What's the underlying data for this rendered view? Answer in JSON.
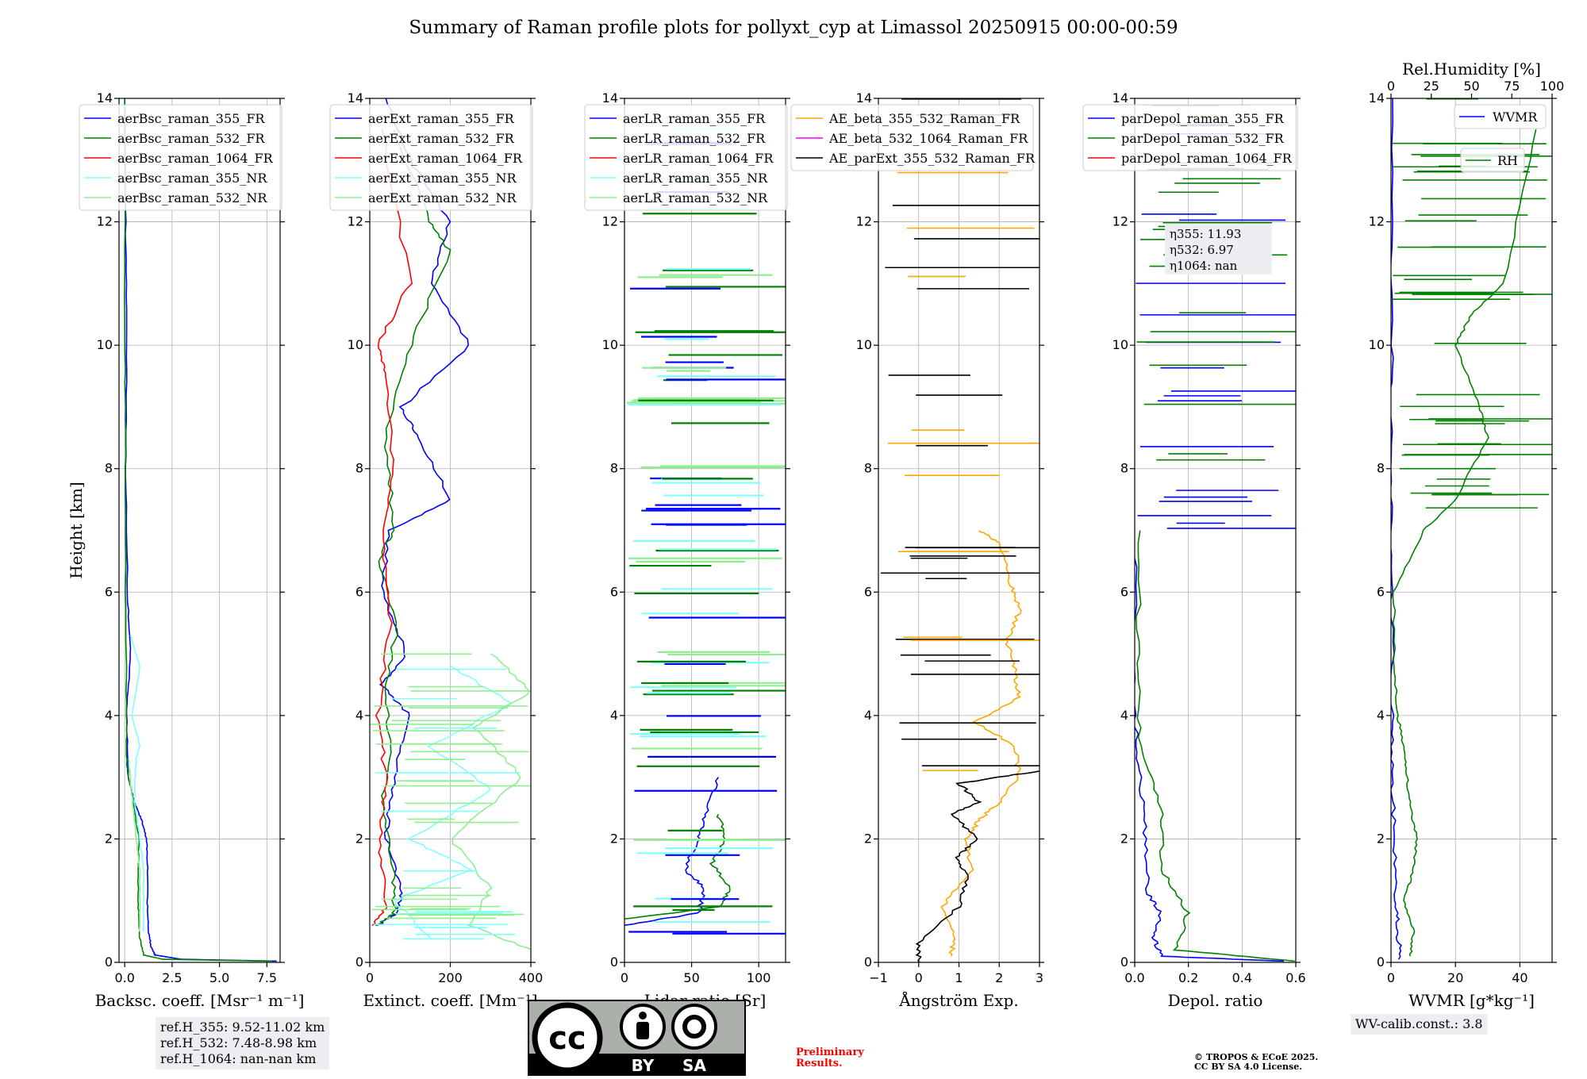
{
  "title": "Summary of Raman profile plots for pollyxt_cyp at Limassol 20250915 00:00-00:59",
  "colors": {
    "blue": "#0000ff",
    "green": "#008000",
    "red": "#ff0000",
    "cyan": "#80ffff",
    "lightgreen": "#90ee90",
    "orange": "#ffa500",
    "magenta": "#ff00ff",
    "black": "#000000"
  },
  "ref_box": {
    "line1": "ref.H_355: 9.52-11.02 km",
    "line2": "ref.H_532: 7.48-8.98 km",
    "line3": "ref.H_1064: nan-nan km"
  },
  "wv_calib": "WV-calib.const.: 3.8",
  "preliminary": {
    "line1": "Preliminary",
    "line2": "Results."
  },
  "copyright": {
    "line1": "© TROPOS & ECoE 2025.",
    "line2": "CC BY SA 4.0 License."
  },
  "license_badge": {
    "cc": "cc",
    "by": "BY",
    "sa": "SA"
  },
  "chart_data": [
    {
      "id": "backscatter",
      "type": "line",
      "xlabel": "Backsc. coeff. [Msr⁻¹ m⁻¹]",
      "ylabel": "Height [km]",
      "xlim": [
        -0.3,
        8.2
      ],
      "ylim": [
        0,
        14
      ],
      "xticks": [
        0,
        2.5,
        5,
        7.5
      ],
      "xticklabels": [
        "0.0",
        "2.5",
        "5.0",
        "7.5"
      ],
      "yticks": [
        0,
        2,
        4,
        6,
        8,
        10,
        12,
        14
      ],
      "legend": [
        "aerBsc_raman_355_FR",
        "aerBsc_raman_532_FR",
        "aerBsc_raman_1064_FR",
        "aerBsc_raman_355_NR",
        "aerBsc_raman_532_NR"
      ],
      "series": [
        {
          "name": "aerBsc_raman_355_FR",
          "color": "blue",
          "points": [
            [
              8.0,
              0.02
            ],
            [
              3.0,
              0.05
            ],
            [
              1.6,
              0.12
            ],
            [
              1.4,
              0.25
            ],
            [
              1.25,
              0.5
            ],
            [
              1.2,
              1.0
            ],
            [
              1.2,
              1.6
            ],
            [
              1.15,
              2.0
            ],
            [
              0.9,
              2.3
            ],
            [
              0.5,
              2.6
            ],
            [
              0.2,
              3.0
            ],
            [
              0.1,
              4.0
            ],
            [
              0.3,
              5.0
            ],
            [
              0.15,
              6.0
            ],
            [
              0.05,
              8.0
            ],
            [
              0.1,
              10.0
            ],
            [
              0.05,
              12.0
            ],
            [
              0.0,
              14.0
            ]
          ]
        },
        {
          "name": "aerBsc_raman_532_FR",
          "color": "green",
          "points": [
            [
              7.8,
              0.02
            ],
            [
              2.0,
              0.05
            ],
            [
              1.0,
              0.12
            ],
            [
              0.8,
              0.4
            ],
            [
              0.7,
              1.0
            ],
            [
              0.75,
              2.0
            ],
            [
              0.45,
              2.6
            ],
            [
              0.1,
              3.2
            ],
            [
              0.1,
              4.0
            ],
            [
              0.05,
              6.0
            ],
            [
              0.05,
              8.0
            ],
            [
              0.02,
              10.0
            ],
            [
              0.0,
              14.0
            ]
          ]
        },
        {
          "name": "aerBsc_raman_355_NR",
          "color": "cyan",
          "points": [
            [
              1.0,
              0.5
            ],
            [
              1.0,
              1.5
            ],
            [
              0.8,
              2.0
            ],
            [
              0.5,
              2.6
            ],
            [
              0.6,
              3.3
            ],
            [
              0.8,
              3.5
            ],
            [
              0.4,
              4.0
            ],
            [
              0.8,
              4.8
            ],
            [
              0.3,
              5.3
            ]
          ]
        },
        {
          "name": "aerBsc_raman_532_NR",
          "color": "lightgreen",
          "points": [
            [
              0.8,
              0.5
            ],
            [
              0.8,
              1.5
            ],
            [
              0.6,
              2.0
            ],
            [
              0.35,
              2.8
            ],
            [
              0.2,
              3.3
            ]
          ]
        }
      ]
    },
    {
      "id": "extinction",
      "type": "line",
      "xlabel": "Extinct. coeff. [Mm⁻¹]",
      "xlim": [
        0,
        400
      ],
      "ylim": [
        0,
        14
      ],
      "xticks": [
        0,
        200,
        400
      ],
      "xticklabels": [
        "0",
        "200",
        "400"
      ],
      "yticks": [
        0,
        2,
        4,
        6,
        8,
        10,
        12,
        14
      ],
      "legend": [
        "aerExt_raman_355_FR",
        "aerExt_raman_532_FR",
        "aerExt_raman_1064_FR",
        "aerExt_raman_355_NR",
        "aerExt_raman_532_NR"
      ],
      "series": [
        {
          "name": "aerExt_raman_355_FR",
          "color": "blue",
          "points": [
            [
              20,
              0.6
            ],
            [
              70,
              0.8
            ],
            [
              80,
              1.2
            ],
            [
              40,
              2.0
            ],
            [
              60,
              3.0
            ],
            [
              100,
              4.0
            ],
            [
              30,
              4.5
            ],
            [
              90,
              5.0
            ],
            [
              30,
              6.0
            ],
            [
              50,
              7.0
            ],
            [
              200,
              7.5
            ],
            [
              120,
              8.5
            ],
            [
              80,
              9.0
            ],
            [
              250,
              10.0
            ],
            [
              150,
              11.0
            ],
            [
              200,
              12.0
            ],
            [
              100,
              13.0
            ],
            [
              40,
              14.0
            ]
          ]
        },
        {
          "name": "aerExt_raman_532_FR",
          "color": "green",
          "points": [
            [
              15,
              0.6
            ],
            [
              60,
              0.8
            ],
            [
              60,
              1.5
            ],
            [
              30,
              2.5
            ],
            [
              50,
              3.5
            ],
            [
              40,
              4.5
            ],
            [
              70,
              5.5
            ],
            [
              20,
              6.5
            ],
            [
              60,
              7.0
            ],
            [
              40,
              8.5
            ],
            [
              100,
              10.0
            ],
            [
              200,
              11.5
            ],
            [
              150,
              12.0
            ],
            [
              60,
              13.5
            ]
          ]
        },
        {
          "name": "aerExt_raman_1064_FR",
          "color": "red",
          "points": [
            [
              10,
              0.6
            ],
            [
              40,
              0.9
            ],
            [
              25,
              2.0
            ],
            [
              40,
              3.0
            ],
            [
              20,
              4.0
            ],
            [
              50,
              5.5
            ],
            [
              30,
              7.0
            ],
            [
              60,
              8.0
            ],
            [
              40,
              9.5
            ],
            [
              20,
              10.0
            ],
            [
              100,
              11.0
            ],
            [
              30,
              13.5
            ]
          ]
        },
        {
          "name": "aerExt_raman_355_NR",
          "color": "cyan",
          "points": [
            [
              150,
              0.4
            ],
            [
              60,
              1.0
            ],
            [
              250,
              1.5
            ],
            [
              100,
              2.0
            ],
            [
              300,
              2.8
            ],
            [
              150,
              3.5
            ],
            [
              350,
              4.2
            ],
            [
              200,
              4.8
            ]
          ]
        },
        {
          "name": "aerExt_raman_532_NR",
          "color": "lightgreen",
          "points": [
            [
              400,
              0.2
            ],
            [
              250,
              0.6
            ],
            [
              300,
              1.2
            ],
            [
              200,
              2.0
            ],
            [
              380,
              3.0
            ],
            [
              260,
              3.8
            ],
            [
              400,
              4.4
            ],
            [
              300,
              5.0
            ]
          ]
        }
      ]
    },
    {
      "id": "lidar_ratio",
      "type": "line",
      "xlabel": "Lidar ratio [Sr]",
      "xlim": [
        0,
        120
      ],
      "ylim": [
        0,
        14
      ],
      "xticks": [
        0,
        50,
        100
      ],
      "xticklabels": [
        "0",
        "50",
        "100"
      ],
      "yticks": [
        0,
        2,
        4,
        6,
        8,
        10,
        12,
        14
      ],
      "legend": [
        "aerLR_raman_355_FR",
        "aerLR_raman_532_FR",
        "aerLR_raman_1064_FR",
        "aerLR_raman_355_NR",
        "aerLR_raman_532_NR"
      ],
      "series": [
        {
          "name": "aerLR_raman_355_FR",
          "color": "blue",
          "points": [
            [
              0,
              0.6
            ],
            [
              55,
              0.8
            ],
            [
              60,
              1.2
            ],
            [
              45,
              1.5
            ],
            [
              55,
              2.0
            ],
            [
              60,
              2.4
            ],
            [
              70,
              3.0
            ]
          ]
        },
        {
          "name": "aerLR_raman_532_FR",
          "color": "green",
          "points": [
            [
              0,
              0.7
            ],
            [
              70,
              0.9
            ],
            [
              80,
              1.2
            ],
            [
              65,
              1.6
            ],
            [
              75,
              2.0
            ],
            [
              70,
              2.4
            ]
          ]
        }
      ]
    },
    {
      "id": "angstrom",
      "type": "line",
      "xlabel": "Ångström Exp.",
      "xlim": [
        -1,
        3
      ],
      "ylim": [
        0,
        14
      ],
      "xticks": [
        -1,
        0,
        1,
        2,
        3
      ],
      "xticklabels": [
        "−1",
        "0",
        "1",
        "2",
        "3"
      ],
      "yticks": [
        0,
        2,
        4,
        6,
        8,
        10,
        12,
        14
      ],
      "legend": [
        "AE_beta_355_532_Raman_FR",
        "AE_beta_532_1064_Raman_FR",
        "AE_parExt_355_532_Raman_FR"
      ],
      "series": [
        {
          "name": "AE_beta_355_532_Raman_FR",
          "color": "orange",
          "points": [
            [
              0.8,
              0.1
            ],
            [
              0.9,
              0.4
            ],
            [
              0.6,
              0.9
            ],
            [
              1.3,
              1.5
            ],
            [
              1.2,
              2.0
            ],
            [
              1.5,
              2.3
            ],
            [
              2.0,
              2.6
            ],
            [
              2.5,
              3.0
            ],
            [
              2.4,
              3.5
            ],
            [
              1.4,
              3.9
            ],
            [
              2.5,
              4.3
            ],
            [
              2.4,
              4.7
            ],
            [
              2.2,
              5.2
            ],
            [
              2.5,
              5.7
            ],
            [
              2.3,
              6.1
            ],
            [
              2.0,
              6.8
            ],
            [
              1.5,
              7.0
            ]
          ]
        },
        {
          "name": "AE_parExt_355_532_Raman_FR",
          "color": "black",
          "points": [
            [
              0.0,
              0.0
            ],
            [
              0.0,
              0.3
            ],
            [
              1.0,
              0.9
            ],
            [
              1.2,
              1.4
            ],
            [
              0.9,
              1.7
            ],
            [
              1.5,
              2.0
            ],
            [
              0.8,
              2.4
            ],
            [
              1.5,
              2.6
            ],
            [
              1.0,
              2.9
            ],
            [
              3.0,
              3.1
            ]
          ]
        }
      ]
    },
    {
      "id": "depol",
      "type": "line",
      "xlabel": "Depol. ratio",
      "xlim": [
        0,
        0.6
      ],
      "ylim": [
        0,
        14
      ],
      "xticks": [
        0,
        0.2,
        0.4,
        0.6
      ],
      "xticklabels": [
        "0.0",
        "0.2",
        "0.4",
        "0.6"
      ],
      "yticks": [
        0,
        2,
        4,
        6,
        8,
        10,
        12,
        14
      ],
      "legend": [
        "parDepol_raman_355_FR",
        "parDepol_raman_532_FR",
        "parDepol_raman_1064_FR"
      ],
      "eta_labels": [
        "η355: 11.93",
        "η532: 6.97",
        "η1064: nan"
      ],
      "series": [
        {
          "name": "parDepol_raman_355_FR",
          "color": "blue",
          "points": [
            [
              0.55,
              0.02
            ],
            [
              0.1,
              0.1
            ],
            [
              0.07,
              0.4
            ],
            [
              0.1,
              0.8
            ],
            [
              0.05,
              1.1
            ],
            [
              0.04,
              2.0
            ],
            [
              0.02,
              3.0
            ],
            [
              0.0,
              4.0
            ],
            [
              0.0,
              7.0
            ]
          ]
        },
        {
          "name": "parDepol_raman_532_FR",
          "color": "green",
          "points": [
            [
              0.6,
              0.02
            ],
            [
              0.15,
              0.2
            ],
            [
              0.2,
              0.8
            ],
            [
              0.1,
              1.5
            ],
            [
              0.1,
              2.5
            ],
            [
              0.02,
              3.5
            ],
            [
              0.01,
              5.0
            ],
            [
              0.02,
              7.0
            ]
          ]
        }
      ]
    },
    {
      "id": "wvmr",
      "type": "line",
      "xlabel": "WVMR [g*kg⁻¹]",
      "xlim": [
        0,
        50
      ],
      "ylim": [
        0,
        14
      ],
      "xticks": [
        0,
        20,
        40
      ],
      "xticklabels": [
        "0",
        "20",
        "40"
      ],
      "yticks": [
        0,
        2,
        4,
        6,
        8,
        10,
        12,
        14
      ],
      "top_axis": {
        "label": "Rel.Humidity [%]",
        "range": [
          0,
          100
        ],
        "ticks": [
          0,
          25,
          50,
          75,
          100
        ]
      },
      "legend": [
        "WVMR",
        "RH"
      ],
      "series": [
        {
          "name": "WVMR",
          "color": "blue",
          "points": [
            [
              3,
              0.05
            ],
            [
              2,
              0.5
            ],
            [
              1.5,
              1.0
            ],
            [
              1,
              2.0
            ],
            [
              0.5,
              3.0
            ],
            [
              0.3,
              4.0
            ],
            [
              0.2,
              6.0
            ],
            [
              0.2,
              8.0
            ],
            [
              0.2,
              10.0
            ],
            [
              0.5,
              14.0
            ]
          ]
        },
        {
          "name": "RH",
          "color": "green",
          "axis": "top",
          "points": [
            [
              12,
              0.1
            ],
            [
              14,
              0.5
            ],
            [
              8,
              1.0
            ],
            [
              14,
              1.5
            ],
            [
              16,
              2.0
            ],
            [
              12,
              2.5
            ],
            [
              10,
              3.0
            ],
            [
              8,
              3.5
            ],
            [
              4,
              4.0
            ],
            [
              2,
              5.0
            ],
            [
              2,
              6.0
            ],
            [
              20,
              7.0
            ],
            [
              40,
              7.5
            ],
            [
              60,
              8.5
            ],
            [
              55,
              9.0
            ],
            [
              40,
              10.0
            ],
            [
              50,
              10.5
            ],
            [
              70,
              11.0
            ],
            [
              90,
              13.5
            ]
          ]
        }
      ]
    }
  ]
}
